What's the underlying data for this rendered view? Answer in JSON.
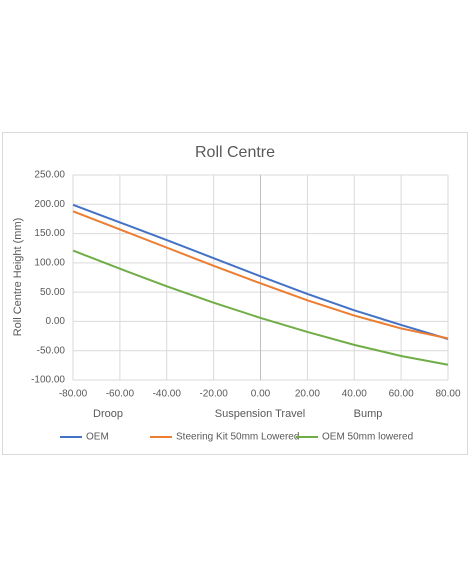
{
  "chart_data": {
    "type": "line",
    "title": "Roll Centre",
    "x_label": "Suspension Travel",
    "y_label": "Roll Centre Height (mm)",
    "annotations": [
      "Droop",
      "Bump"
    ],
    "x": [
      -80,
      -60,
      -40,
      -20,
      0,
      20,
      40,
      60,
      80
    ],
    "series": [
      {
        "name": "OEM",
        "color": "#4472c4",
        "values": [
          199,
          169,
          139,
          108,
          77,
          47,
          19,
          -6,
          -30
        ]
      },
      {
        "name": "Steering Kit 50mm Lowered",
        "color": "#ed7d31",
        "values": [
          188,
          157,
          126,
          95,
          65,
          36,
          10,
          -12,
          -29
        ]
      },
      {
        "name": "OEM 50mm lowered",
        "color": "#70ad47",
        "values": [
          121,
          90,
          60,
          32,
          6,
          -18,
          -40,
          -59,
          -74
        ]
      }
    ],
    "xlim": [
      -80,
      80
    ],
    "xticks": [
      {
        "value": -80,
        "label": "-80.00"
      },
      {
        "value": -60,
        "label": "-60.00"
      },
      {
        "value": -40,
        "label": "-40.00"
      },
      {
        "value": -20,
        "label": "-20.00"
      },
      {
        "value": 0,
        "label": "0.00"
      },
      {
        "value": 20,
        "label": "20.00"
      },
      {
        "value": 40,
        "label": "40.00"
      },
      {
        "value": 60,
        "label": "60.00"
      },
      {
        "value": 80,
        "label": "80.00"
      }
    ],
    "ylim": [
      -100,
      250
    ],
    "yticks": [
      {
        "value": -100,
        "label": "-100.00"
      },
      {
        "value": -50,
        "label": "-50.00"
      },
      {
        "value": 0,
        "label": "0.00"
      },
      {
        "value": 50,
        "label": "50.00"
      },
      {
        "value": 100,
        "label": "100.00"
      },
      {
        "value": 150,
        "label": "150.00"
      },
      {
        "value": 200,
        "label": "200.00"
      },
      {
        "value": 250,
        "label": "250.00"
      }
    ],
    "grid": true,
    "legend": "bottom"
  }
}
